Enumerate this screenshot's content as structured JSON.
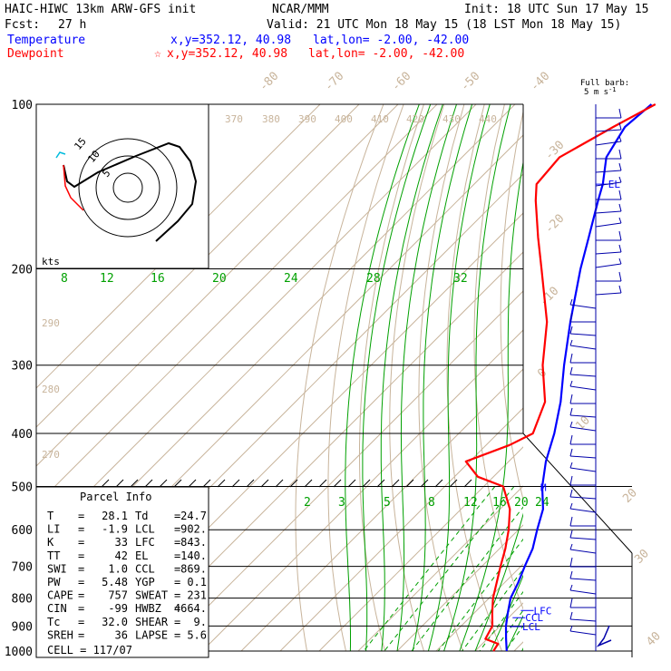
{
  "header": {
    "model": "HAIC-HIWC 13km ARW-GFS init",
    "org": "NCAR/MMM",
    "init": "Init: 18 UTC Sun 17 May 15",
    "fcst_label": "Fcst:",
    "fcst_value": "27 h",
    "valid": "Valid: 21 UTC Mon 18 May 15 (18 LST Mon 18 May 15)",
    "temperature_label": "Temperature",
    "temperature_loc": "x,y=352.12, 40.98",
    "temperature_latlon": "lat,lon= -2.00, -42.00",
    "dewpoint_label": "Dewpoint",
    "dewpoint_loc": "x,y=352.12, 40.98",
    "dewpoint_latlon": "lat,lon= -2.00, -42.00",
    "barb_label_1": "Full barb:",
    "barb_label_2": "5 m s",
    "barb_label_sup": "-1",
    "colors": {
      "temperature": "#0000ff",
      "dewpoint": "#ff0000",
      "isotherm": "#c8b49b",
      "mixing_ratio": "#00a000",
      "isobar": "#000000",
      "wind": "#0000aa"
    }
  },
  "chart_data": {
    "type": "line",
    "title": "HAIC-HIWC 13km ARW-GFS init",
    "pressure_levels": [
      100,
      200,
      300,
      400,
      500,
      600,
      700,
      800,
      900,
      1000
    ],
    "isotherm_labels_top": [
      -80,
      -70,
      -60,
      -50,
      -40
    ],
    "isotherm_labels_right": [
      -30,
      -20,
      -10,
      0,
      10,
      20,
      30,
      40
    ],
    "theta_labels_top": [
      370,
      380,
      390,
      400,
      410,
      420,
      430,
      440
    ],
    "theta_labels_left": [
      290,
      280,
      270
    ],
    "mixing_ratio_labels_upper": [
      8,
      12,
      16,
      20,
      24,
      28,
      32
    ],
    "mixing_ratio_labels_lower": [
      2,
      3,
      5,
      8,
      12,
      16,
      20,
      24
    ],
    "series": [
      {
        "name": "Temperature",
        "color": "#0000ff",
        "points": [
          {
            "p": 1000,
            "t": 28.1
          },
          {
            "p": 950,
            "t": 24.8
          },
          {
            "p": 900,
            "t": 21.5
          },
          {
            "p": 850,
            "t": 18.5
          },
          {
            "p": 800,
            "t": 15.5
          },
          {
            "p": 750,
            "t": 13.5
          },
          {
            "p": 700,
            "t": 11.0
          },
          {
            "p": 650,
            "t": 8.5
          },
          {
            "p": 600,
            "t": 4.8
          },
          {
            "p": 550,
            "t": 1.0
          },
          {
            "p": 500,
            "t": -5.0
          },
          {
            "p": 450,
            "t": -10.5
          },
          {
            "p": 400,
            "t": -15.5
          },
          {
            "p": 350,
            "t": -22.0
          },
          {
            "p": 300,
            "t": -30.5
          },
          {
            "p": 250,
            "t": -40.0
          },
          {
            "p": 200,
            "t": -51.0
          },
          {
            "p": 175,
            "t": -57.0
          },
          {
            "p": 150,
            "t": -64.0
          },
          {
            "p": 140,
            "t": -67.0
          },
          {
            "p": 125,
            "t": -73.0
          },
          {
            "p": 110,
            "t": -76.0
          },
          {
            "p": 100,
            "t": -75.0
          }
        ]
      },
      {
        "name": "Dewpoint",
        "color": "#ff0000",
        "points": [
          {
            "p": 1000,
            "t": 24.7
          },
          {
            "p": 970,
            "t": 24.0
          },
          {
            "p": 950,
            "t": 19.5
          },
          {
            "p": 900,
            "t": 18.0
          },
          {
            "p": 850,
            "t": 14.5
          },
          {
            "p": 800,
            "t": 11.0
          },
          {
            "p": 750,
            "t": 8.0
          },
          {
            "p": 700,
            "t": 4.8
          },
          {
            "p": 650,
            "t": 1.5
          },
          {
            "p": 600,
            "t": -2.5
          },
          {
            "p": 550,
            "t": -7.5
          },
          {
            "p": 500,
            "t": -15.0
          },
          {
            "p": 480,
            "t": -24.0
          },
          {
            "p": 450,
            "t": -31.0
          },
          {
            "p": 420,
            "t": -24.0
          },
          {
            "p": 400,
            "t": -21.0
          },
          {
            "p": 350,
            "t": -26.0
          },
          {
            "p": 300,
            "t": -36.0
          },
          {
            "p": 250,
            "t": -46.0
          },
          {
            "p": 200,
            "t": -61.0
          },
          {
            "p": 175,
            "t": -70.0
          },
          {
            "p": 150,
            "t": -80.0
          },
          {
            "p": 140,
            "t": -84.0
          },
          {
            "p": 125,
            "t": -85.0
          },
          {
            "p": 110,
            "t": -79.0
          },
          {
            "p": 100,
            "t": -74.0
          }
        ]
      }
    ],
    "annotations": [
      {
        "label": "EL",
        "p": 140
      },
      {
        "label": "LFC",
        "p": 843
      },
      {
        "label": "CCL",
        "p": 869
      },
      {
        "label": "LCL",
        "p": 902
      },
      {
        "label": "M",
        "p": 500
      }
    ],
    "hodograph": {
      "units_label": "kts",
      "ring_labels": [
        "15",
        "10",
        "5"
      ]
    }
  },
  "parcel_info": {
    "title": "Parcel Info",
    "rows": [
      {
        "l1": "T",
        "v1": "28.1",
        "l2": "Td",
        "v2": "24.7"
      },
      {
        "l1": "LI",
        "v1": "-1.9",
        "l2": "LCL",
        "v2": "902."
      },
      {
        "l1": "K",
        "v1": "33",
        "l2": "LFC",
        "v2": "843."
      },
      {
        "l1": "TT",
        "v1": "42",
        "l2": "EL",
        "v2": "140."
      },
      {
        "l1": "SWI",
        "v1": "1.0",
        "l2": "CCL",
        "v2": "869."
      },
      {
        "l1": "PW",
        "v1": "5.48",
        "l2": "YGP",
        "v2": "0.1"
      },
      {
        "l1": "CAPE",
        "v1": "757",
        "l2": "SWEAT",
        "v2": "231"
      },
      {
        "l1": "CIN",
        "v1": "-99",
        "l2": "HWBZ",
        "v2": "4664."
      },
      {
        "l1": "Tc",
        "v1": "32.0",
        "l2": "SHEAR",
        "v2": "9."
      },
      {
        "l1": "SREH",
        "v1": "36",
        "l2": "LAPSE",
        "v2": "5.6"
      }
    ],
    "cell": "CELL = 117/07"
  }
}
